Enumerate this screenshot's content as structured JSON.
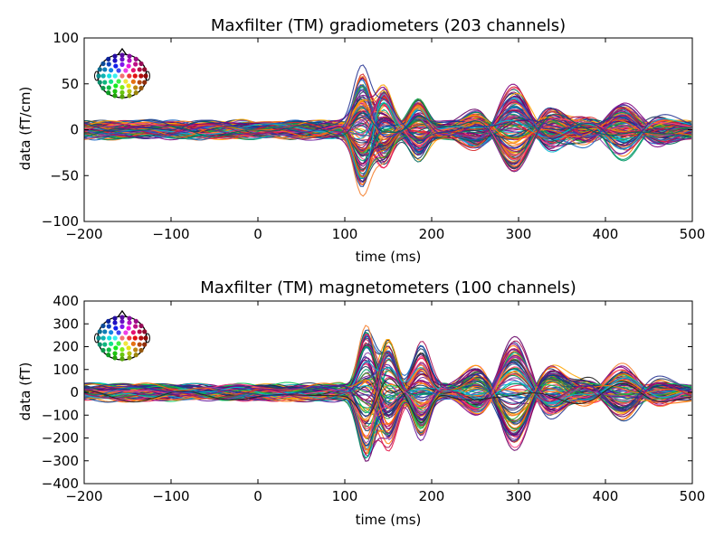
{
  "chart_data": [
    {
      "type": "line",
      "title": "Maxfilter (TM) gradiometers (203 channels)",
      "xlabel": "time (ms)",
      "ylabel": "data (fT/cm)",
      "xlim": [
        -200,
        500
      ],
      "ylim": [
        -100,
        100
      ],
      "xticks": [
        -200,
        -100,
        0,
        100,
        200,
        300,
        400,
        500
      ],
      "yticks": [
        -100,
        -50,
        0,
        50,
        100
      ],
      "xtick_labels": [
        "−200",
        "−100",
        "0",
        "100",
        "200",
        "300",
        "400",
        "500"
      ],
      "ytick_labels": [
        "−100",
        "−50",
        "0",
        "50",
        "100"
      ],
      "grid": false,
      "legend": "sensor-layout head inset top-left",
      "n_channels": 203,
      "series_summary": {
        "baseline_amplitude": 8,
        "events": [
          {
            "t": 120,
            "peak": 65
          },
          {
            "t": 145,
            "peak": 45
          },
          {
            "t": 185,
            "peak": 30
          },
          {
            "t": 295,
            "peak": 45
          },
          {
            "t": 420,
            "peak": 25
          }
        ]
      },
      "colors": [
        "#e6194b",
        "#f58231",
        "#ff7f0e",
        "#ffa500",
        "#800080",
        "#660066",
        "#0b3d91",
        "#1f3a60",
        "#009966",
        "#2ca02c",
        "#d62728",
        "#ff4081",
        "#8e44ad",
        "#1565c0",
        "#00bcd4",
        "#ff6f00",
        "#6a1b9a",
        "#ad1457",
        "#00695c",
        "#283593"
      ]
    },
    {
      "type": "line",
      "title": "Maxfilter (TM) magnetometers (100 channels)",
      "xlabel": "time (ms)",
      "ylabel": "data (fT)",
      "xlim": [
        -200,
        500
      ],
      "ylim": [
        -400,
        400
      ],
      "xticks": [
        -200,
        -100,
        0,
        100,
        200,
        300,
        400,
        500
      ],
      "yticks": [
        -400,
        -300,
        -200,
        -100,
        0,
        100,
        200,
        300,
        400
      ],
      "xtick_labels": [
        "−200",
        "−100",
        "0",
        "100",
        "200",
        "300",
        "400",
        "500"
      ],
      "ytick_labels": [
        "−400",
        "−300",
        "−200",
        "−100",
        "0",
        "100",
        "200",
        "300",
        "400"
      ],
      "grid": false,
      "legend": "sensor-layout head inset top-left",
      "n_channels": 100,
      "series_summary": {
        "baseline_amplitude": 30,
        "events": [
          {
            "t": 125,
            "peak": 300
          },
          {
            "t": 150,
            "peak": 230
          },
          {
            "t": 188,
            "peak": 210
          },
          {
            "t": 295,
            "peak": 230
          },
          {
            "t": 420,
            "peak": 100
          }
        ]
      },
      "colors": [
        "#e6194b",
        "#f58231",
        "#ff7f0e",
        "#ffa500",
        "#800080",
        "#660066",
        "#0b3d91",
        "#1f3a60",
        "#009966",
        "#2ca02c",
        "#00c853",
        "#ff4081",
        "#8e44ad",
        "#1565c0",
        "#00bcd4",
        "#ff6f00",
        "#6a1b9a",
        "#ad1457",
        "#222222",
        "#283593"
      ]
    }
  ]
}
